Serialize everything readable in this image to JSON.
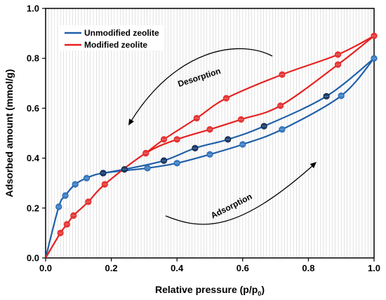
{
  "chart_data": {
    "type": "line",
    "xlabel_main": "Relative pressure (p/p",
    "xlabel_sub": "0",
    "xlabel_end": ")",
    "ylabel": "Adsorbed amount (mmol/g)",
    "xlim": [
      0.0,
      1.0
    ],
    "ylim": [
      0.0,
      1.0
    ],
    "x_ticks": [
      "0.0",
      "0.2",
      "0.4",
      "0.6",
      "0.8",
      "1.0"
    ],
    "y_ticks": [
      "0.0",
      "0.2",
      "0.4",
      "0.6",
      "0.8",
      "1.0"
    ],
    "grid": true,
    "legend_position": "top-left",
    "series": [
      {
        "name": "Unmodified zeolite",
        "color": "#1f5fa8",
        "marker_color": "#3d7fc6",
        "marker_dark": "#1b3f72",
        "adsorption": [
          {
            "x": 0.0,
            "y": 0.0
          },
          {
            "x": 0.04,
            "y": 0.205
          },
          {
            "x": 0.06,
            "y": 0.25
          },
          {
            "x": 0.09,
            "y": 0.295
          },
          {
            "x": 0.125,
            "y": 0.32
          },
          {
            "x": 0.175,
            "y": 0.34
          },
          {
            "x": 0.31,
            "y": 0.36
          },
          {
            "x": 0.4,
            "y": 0.38
          },
          {
            "x": 0.5,
            "y": 0.415
          },
          {
            "x": 0.6,
            "y": 0.455
          },
          {
            "x": 0.72,
            "y": 0.515
          },
          {
            "x": 0.9,
            "y": 0.65
          },
          {
            "x": 1.0,
            "y": 0.8
          }
        ],
        "desorption": [
          {
            "x": 1.0,
            "y": 0.8
          },
          {
            "x": 0.855,
            "y": 0.648
          },
          {
            "x": 0.665,
            "y": 0.528
          },
          {
            "x": 0.555,
            "y": 0.475
          },
          {
            "x": 0.455,
            "y": 0.44
          },
          {
            "x": 0.36,
            "y": 0.39
          },
          {
            "x": 0.24,
            "y": 0.355
          },
          {
            "x": 0.175,
            "y": 0.34
          }
        ]
      },
      {
        "name": "Modified zeolite",
        "color": "#e52322",
        "marker_color": "#e53a3a",
        "marker_dark": "#8c1414",
        "adsorption": [
          {
            "x": 0.0,
            "y": 0.0
          },
          {
            "x": 0.045,
            "y": 0.1
          },
          {
            "x": 0.065,
            "y": 0.135
          },
          {
            "x": 0.085,
            "y": 0.17
          },
          {
            "x": 0.13,
            "y": 0.225
          },
          {
            "x": 0.18,
            "y": 0.295
          },
          {
            "x": 0.305,
            "y": 0.42
          },
          {
            "x": 0.4,
            "y": 0.475
          },
          {
            "x": 0.5,
            "y": 0.515
          },
          {
            "x": 0.595,
            "y": 0.555
          },
          {
            "x": 0.715,
            "y": 0.61
          },
          {
            "x": 0.89,
            "y": 0.775
          },
          {
            "x": 1.0,
            "y": 0.89
          }
        ],
        "desorption": [
          {
            "x": 1.0,
            "y": 0.89
          },
          {
            "x": 0.89,
            "y": 0.815
          },
          {
            "x": 0.72,
            "y": 0.735
          },
          {
            "x": 0.55,
            "y": 0.64
          },
          {
            "x": 0.46,
            "y": 0.56
          },
          {
            "x": 0.36,
            "y": 0.475
          },
          {
            "x": 0.305,
            "y": 0.42
          }
        ]
      }
    ],
    "annotations": [
      {
        "text": "Desorption"
      },
      {
        "text": "Adsorption"
      }
    ]
  }
}
